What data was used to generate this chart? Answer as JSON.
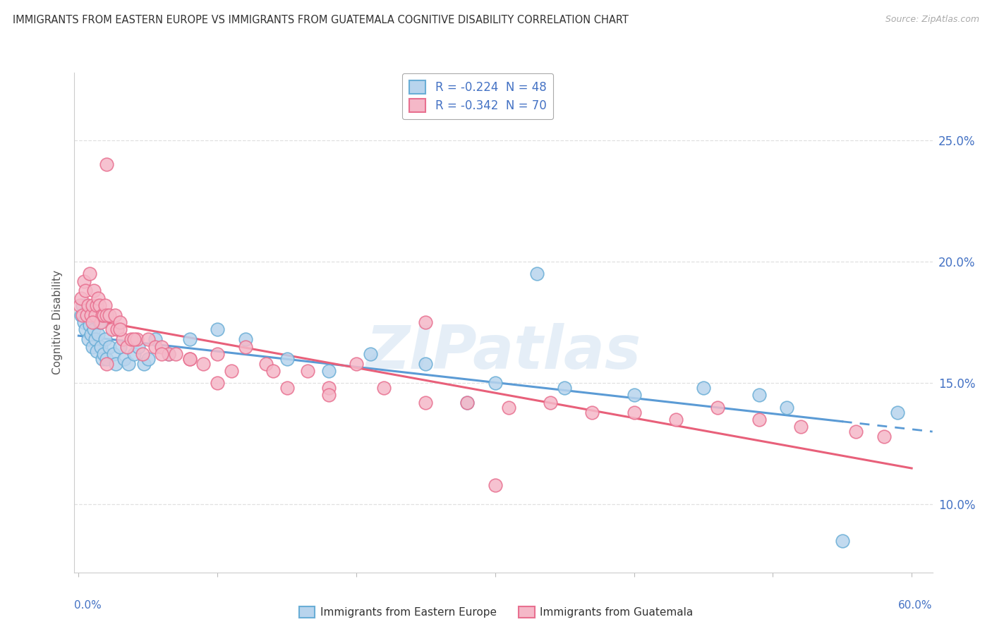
{
  "title": "IMMIGRANTS FROM EASTERN EUROPE VS IMMIGRANTS FROM GUATEMALA COGNITIVE DISABILITY CORRELATION CHART",
  "source": "Source: ZipAtlas.com",
  "ylabel": "Cognitive Disability",
  "ytick_labels": [
    "10.0%",
    "15.0%",
    "20.0%",
    "25.0%"
  ],
  "ytick_values": [
    0.1,
    0.15,
    0.2,
    0.25
  ],
  "xlim": [
    -0.003,
    0.615
  ],
  "ylim": [
    0.072,
    0.278
  ],
  "legend_r1": "R = -0.224  N = 48",
  "legend_r2": "R = -0.342  N = 70",
  "ee_face": "#b8d4ed",
  "ee_edge": "#6aaed6",
  "gt_face": "#f5b8c8",
  "gt_edge": "#e87090",
  "ee_line": "#5b9bd5",
  "gt_line": "#e8607a",
  "background": "#ffffff",
  "grid_color": "#e0e0e0",
  "watermark": "ZIPatlas",
  "ee_x": [
    0.002,
    0.003,
    0.004,
    0.005,
    0.006,
    0.007,
    0.008,
    0.009,
    0.01,
    0.011,
    0.012,
    0.013,
    0.014,
    0.015,
    0.016,
    0.017,
    0.018,
    0.019,
    0.02,
    0.022,
    0.025,
    0.027,
    0.03,
    0.033,
    0.036,
    0.04,
    0.043,
    0.047,
    0.05,
    0.055,
    0.065,
    0.08,
    0.1,
    0.12,
    0.15,
    0.18,
    0.21,
    0.25,
    0.3,
    0.35,
    0.4,
    0.45,
    0.49,
    0.51,
    0.55,
    0.59,
    0.33,
    0.28
  ],
  "ee_y": [
    0.178,
    0.182,
    0.175,
    0.172,
    0.18,
    0.168,
    0.174,
    0.17,
    0.165,
    0.172,
    0.168,
    0.163,
    0.17,
    0.175,
    0.165,
    0.16,
    0.162,
    0.168,
    0.16,
    0.165,
    0.162,
    0.158,
    0.165,
    0.16,
    0.158,
    0.162,
    0.165,
    0.158,
    0.16,
    0.168,
    0.162,
    0.168,
    0.172,
    0.168,
    0.16,
    0.155,
    0.162,
    0.158,
    0.15,
    0.148,
    0.145,
    0.148,
    0.145,
    0.14,
    0.085,
    0.138,
    0.195,
    0.142
  ],
  "gt_x": [
    0.001,
    0.002,
    0.003,
    0.004,
    0.005,
    0.006,
    0.007,
    0.008,
    0.009,
    0.01,
    0.011,
    0.012,
    0.013,
    0.014,
    0.015,
    0.016,
    0.017,
    0.018,
    0.019,
    0.02,
    0.022,
    0.024,
    0.026,
    0.028,
    0.03,
    0.032,
    0.035,
    0.038,
    0.042,
    0.046,
    0.05,
    0.055,
    0.06,
    0.065,
    0.07,
    0.08,
    0.09,
    0.1,
    0.11,
    0.12,
    0.135,
    0.15,
    0.165,
    0.18,
    0.2,
    0.22,
    0.25,
    0.28,
    0.31,
    0.34,
    0.37,
    0.4,
    0.43,
    0.46,
    0.49,
    0.52,
    0.56,
    0.58,
    0.02,
    0.3,
    0.25,
    0.18,
    0.14,
    0.1,
    0.08,
    0.06,
    0.04,
    0.03,
    0.02,
    0.01
  ],
  "gt_y": [
    0.182,
    0.185,
    0.178,
    0.192,
    0.188,
    0.178,
    0.182,
    0.195,
    0.178,
    0.182,
    0.188,
    0.178,
    0.182,
    0.185,
    0.182,
    0.175,
    0.178,
    0.178,
    0.182,
    0.178,
    0.178,
    0.172,
    0.178,
    0.172,
    0.175,
    0.168,
    0.165,
    0.168,
    0.168,
    0.162,
    0.168,
    0.165,
    0.165,
    0.162,
    0.162,
    0.16,
    0.158,
    0.162,
    0.155,
    0.165,
    0.158,
    0.148,
    0.155,
    0.148,
    0.158,
    0.148,
    0.142,
    0.142,
    0.14,
    0.142,
    0.138,
    0.138,
    0.135,
    0.14,
    0.135,
    0.132,
    0.13,
    0.128,
    0.24,
    0.108,
    0.175,
    0.145,
    0.155,
    0.15,
    0.16,
    0.162,
    0.168,
    0.172,
    0.158,
    0.175
  ]
}
